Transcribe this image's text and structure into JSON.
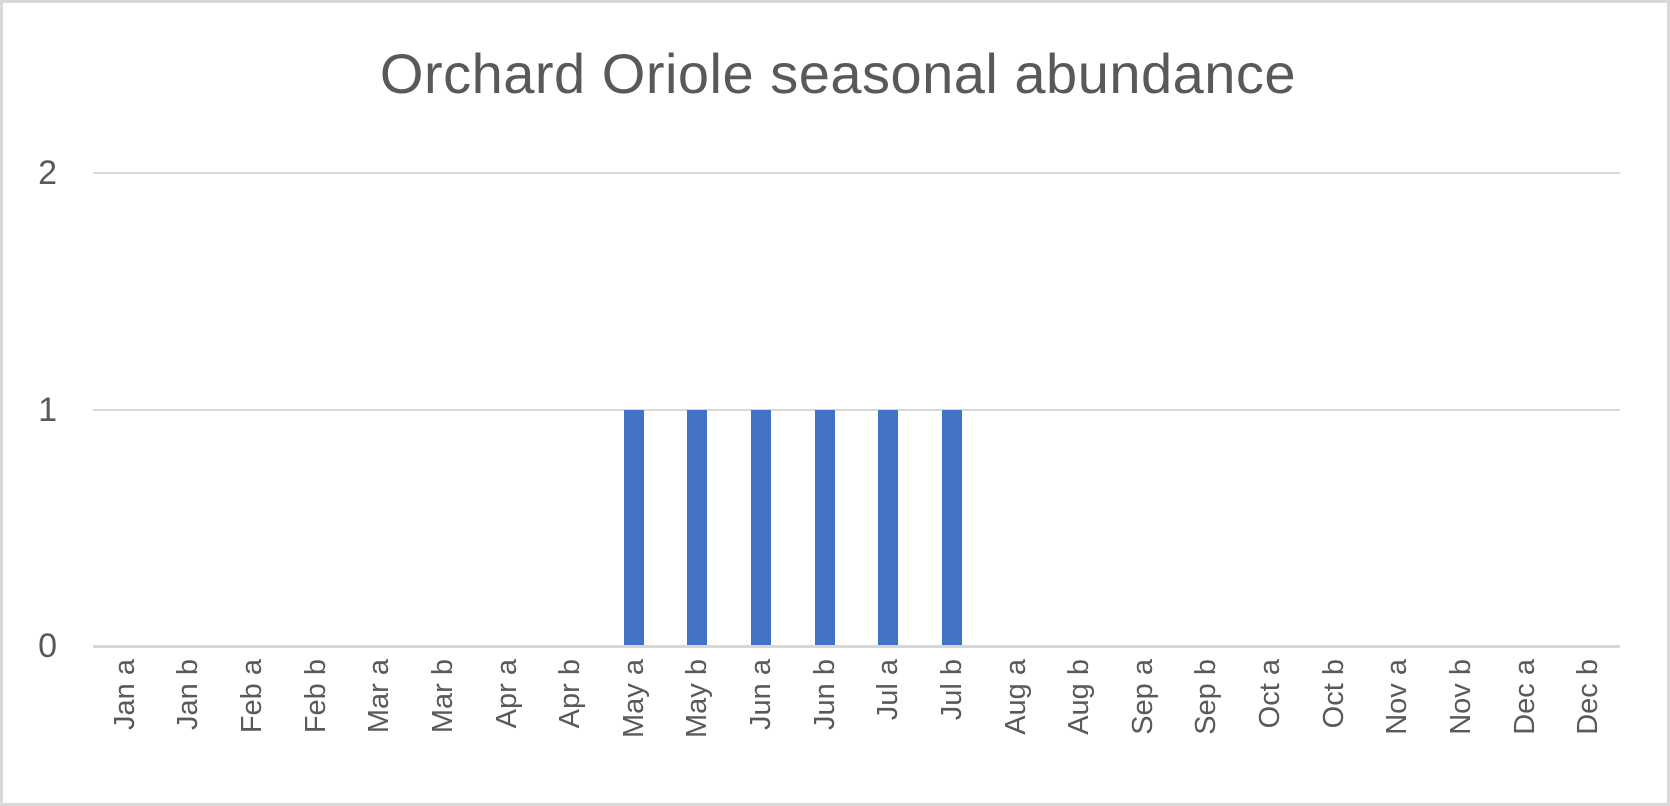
{
  "title": "Orchard Oriole seasonal abundance",
  "colors": {
    "bar": "#4472C4",
    "gridline": "#D9D9D9",
    "axis_line": "#D6D6D6",
    "text": "#595959",
    "border": "#D9D9D9",
    "background": "#FFFFFF"
  },
  "chart_data": {
    "type": "bar",
    "title": "Orchard Oriole seasonal abundance",
    "categories": [
      "Jan a",
      "Jan b",
      "Feb a",
      "Feb b",
      "Mar a",
      "Mar b",
      "Apr a",
      "Apr b",
      "May a",
      "May b",
      "Jun a",
      "Jun b",
      "Jul a",
      "Jul b",
      "Aug a",
      "Aug b",
      "Sep a",
      "Sep b",
      "Oct a",
      "Oct b",
      "Nov a",
      "Nov b",
      "Dec a",
      "Dec b"
    ],
    "values": [
      0,
      0,
      0,
      0,
      0,
      0,
      0,
      0,
      1,
      1,
      1,
      1,
      1,
      1,
      0,
      0,
      0,
      0,
      0,
      0,
      0,
      0,
      0,
      0
    ],
    "xlabel": "",
    "ylabel": "",
    "ylim": [
      0,
      2
    ],
    "yticks": [
      0,
      1,
      2
    ],
    "grid": true,
    "legend": false,
    "x_label_rotation": -90,
    "bar_color": "#4472C4"
  }
}
